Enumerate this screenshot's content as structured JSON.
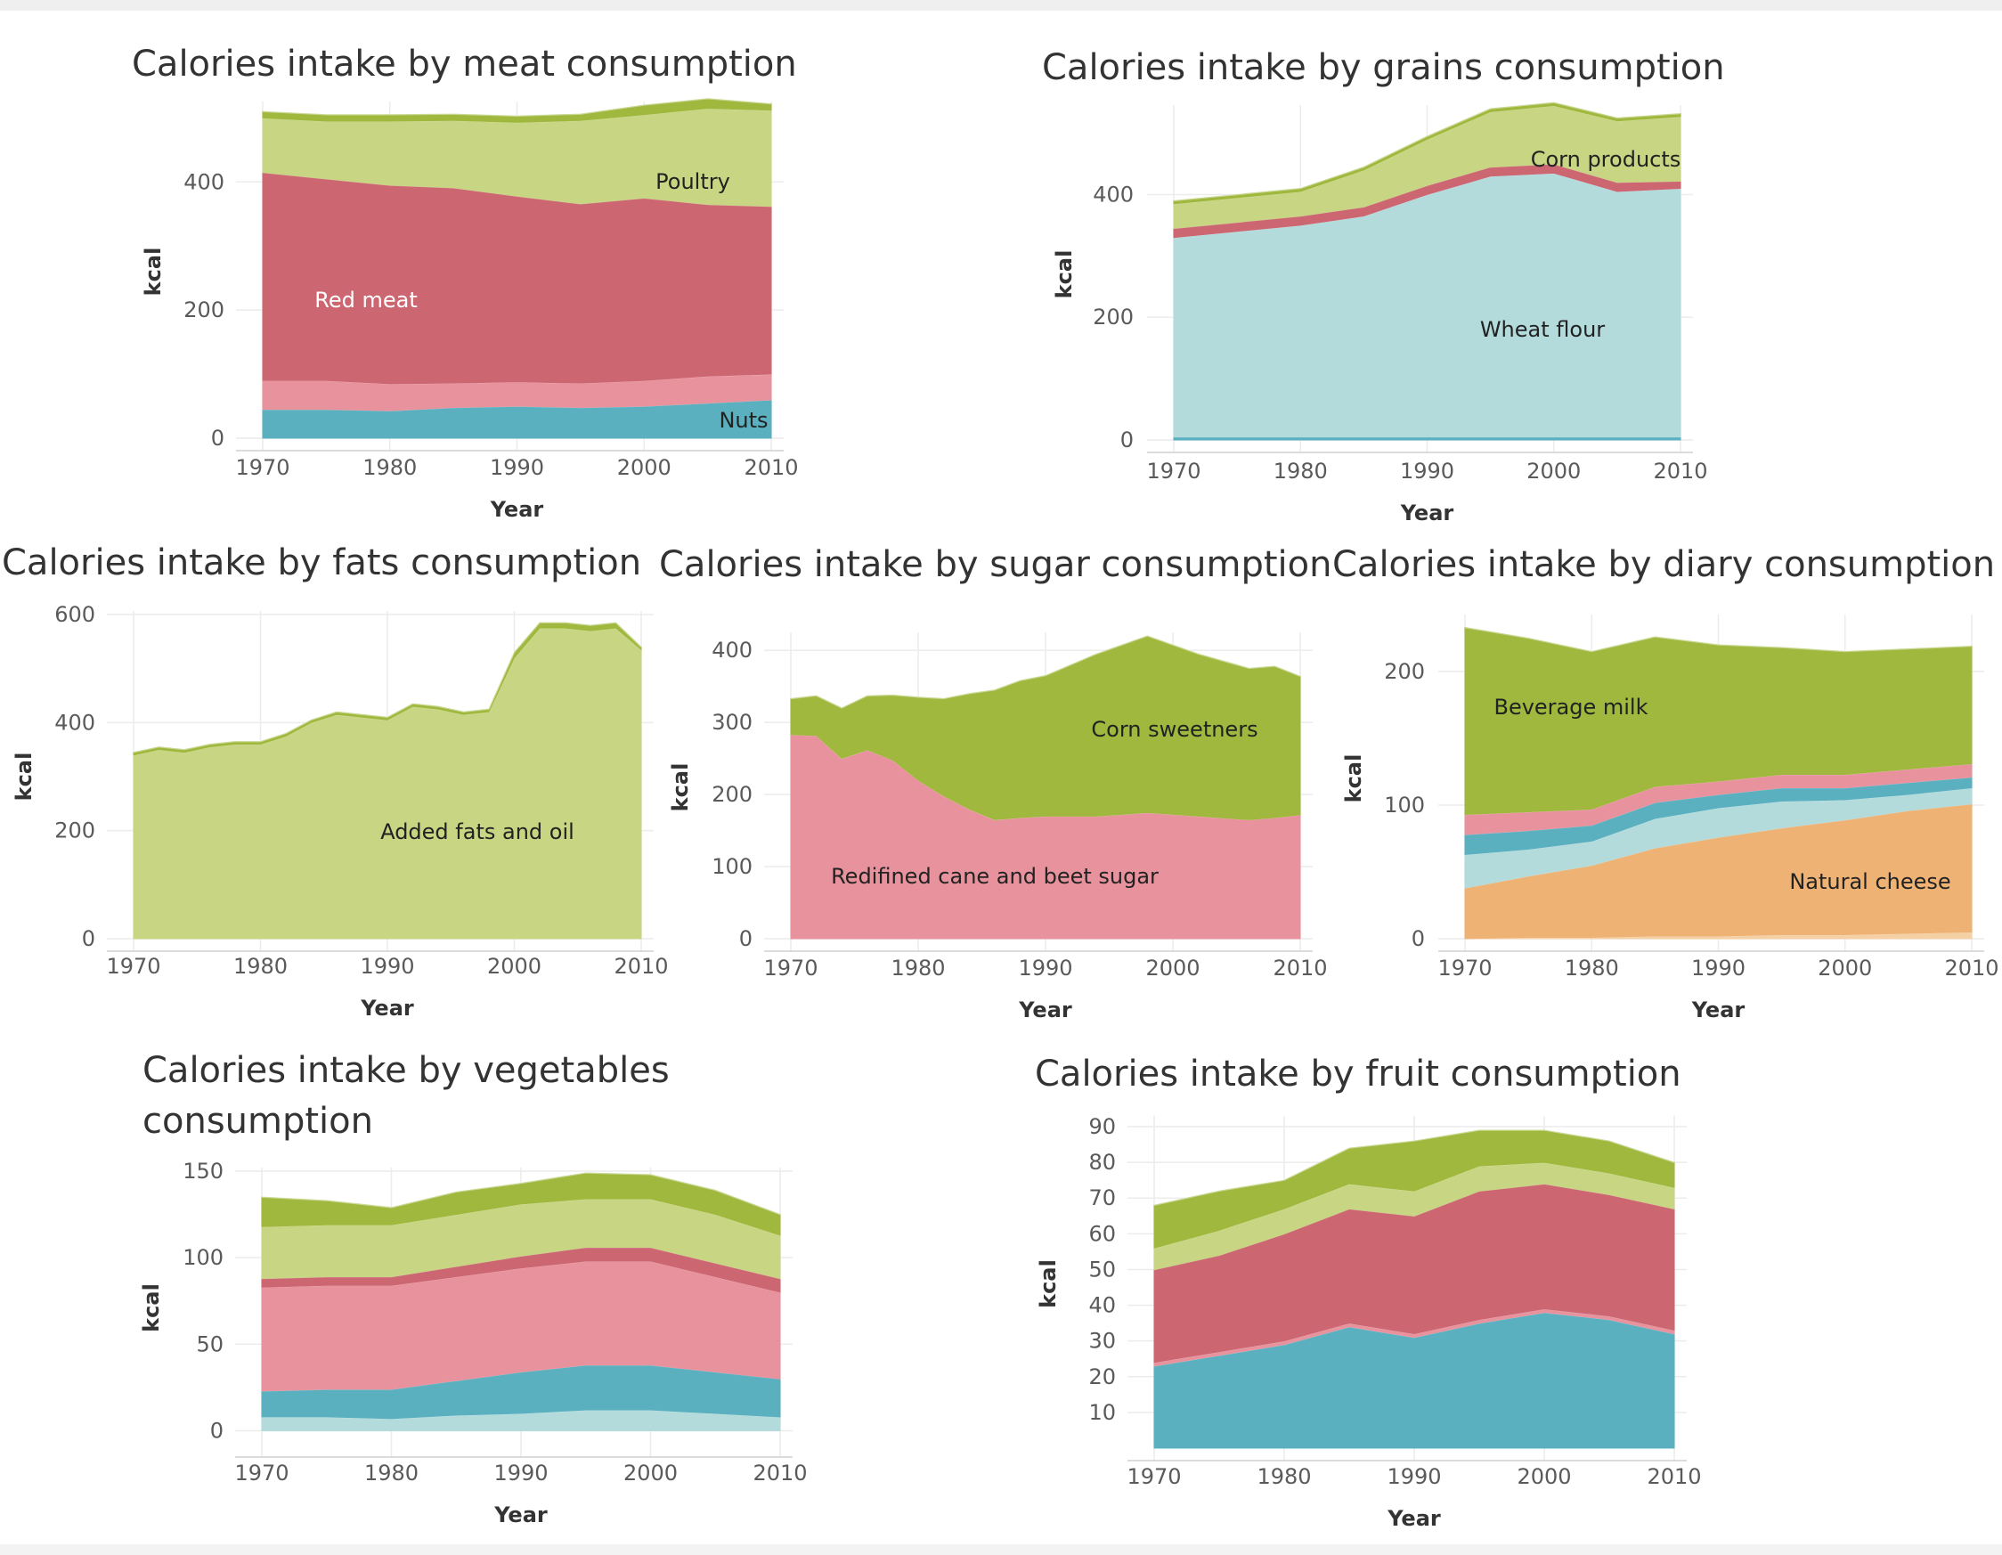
{
  "chart_data": [
    {
      "type": "area",
      "title": "Calories intake by meat consumption",
      "xlabel": "Year",
      "ylabel": "kcal",
      "x_range": [
        1970,
        2010
      ],
      "y_range": [
        0,
        520
      ],
      "x_ticks": [
        "1970",
        "1980",
        "1990",
        "2000",
        "2010"
      ],
      "y_ticks": [
        "0",
        "200",
        "400"
      ],
      "x": [
        1970,
        1975,
        1980,
        1985,
        1990,
        1995,
        2000,
        2005,
        2010
      ],
      "series": [
        {
          "name": "Nuts",
          "color": "#5bb0c0",
          "values": [
            45,
            45,
            43,
            48,
            50,
            48,
            50,
            55,
            60
          ]
        },
        {
          "name": "",
          "color": "#e8929d",
          "values": [
            45,
            45,
            42,
            38,
            38,
            38,
            40,
            42,
            40
          ]
        },
        {
          "name": "Red meat",
          "color": "#cc6772",
          "values": [
            325,
            315,
            310,
            305,
            290,
            280,
            285,
            268,
            262
          ]
        },
        {
          "name": "Poultry",
          "color": "#c8d582",
          "values": [
            85,
            90,
            100,
            105,
            115,
            130,
            130,
            150,
            150
          ]
        },
        {
          "name": "",
          "color": "#9fb83d",
          "values": [
            10,
            10,
            10,
            10,
            10,
            10,
            15,
            15,
            10
          ]
        }
      ]
    },
    {
      "type": "area",
      "title": "Calories intake by grains consumption",
      "xlabel": "Year",
      "ylabel": "kcal",
      "x_range": [
        1970,
        2010
      ],
      "y_range": [
        0,
        540
      ],
      "x_ticks": [
        "1970",
        "1980",
        "1990",
        "2000",
        "2010"
      ],
      "y_ticks": [
        "0",
        "200",
        "400"
      ],
      "x": [
        1970,
        1975,
        1980,
        1985,
        1990,
        1995,
        2000,
        2005,
        2010
      ],
      "series": [
        {
          "name": "",
          "color": "#5bb0c0",
          "values": [
            5,
            5,
            5,
            5,
            5,
            5,
            5,
            5,
            5
          ]
        },
        {
          "name": "Wheat flour",
          "color": "#b3dbdc",
          "values": [
            325,
            335,
            345,
            360,
            395,
            425,
            430,
            400,
            405
          ]
        },
        {
          "name": "",
          "color": "#cc6772",
          "values": [
            15,
            15,
            15,
            15,
            15,
            15,
            15,
            15,
            12
          ]
        },
        {
          "name": "Corn products",
          "color": "#c8d582",
          "values": [
            40,
            40,
            40,
            60,
            75,
            90,
            95,
            100,
            105
          ]
        },
        {
          "name": "",
          "color": "#9fb83d",
          "values": [
            5,
            5,
            5,
            5,
            5,
            5,
            5,
            5,
            5
          ]
        }
      ]
    },
    {
      "type": "area",
      "title": "Calories intake by fats consumption",
      "xlabel": "Year",
      "ylabel": "kcal",
      "x_range": [
        1970,
        2010
      ],
      "y_range": [
        0,
        600
      ],
      "x_ticks": [
        "1970",
        "1980",
        "1990",
        "2000",
        "2010"
      ],
      "y_ticks": [
        "0",
        "200",
        "400",
        "600"
      ],
      "x": [
        1970,
        1972,
        1974,
        1976,
        1978,
        1980,
        1982,
        1984,
        1986,
        1988,
        1990,
        1992,
        1994,
        1996,
        1998,
        2000,
        2002,
        2004,
        2006,
        2008,
        2010
      ],
      "series": [
        {
          "name": "Added fats and oil",
          "color": "#c8d582",
          "values": [
            340,
            350,
            345,
            355,
            360,
            360,
            375,
            400,
            415,
            410,
            405,
            430,
            425,
            415,
            420,
            520,
            575,
            575,
            570,
            575,
            535
          ]
        },
        {
          "name": "",
          "color": "#9fb83d",
          "values": [
            5,
            5,
            5,
            5,
            5,
            5,
            5,
            5,
            5,
            5,
            5,
            5,
            5,
            5,
            5,
            10,
            10,
            10,
            10,
            10,
            5
          ]
        }
      ]
    },
    {
      "type": "area",
      "title": "Calories intake by sugar consumption",
      "xlabel": "Year",
      "ylabel": "kcal",
      "x_range": [
        1970,
        2010
      ],
      "y_range": [
        0,
        420
      ],
      "x_ticks": [
        "1970",
        "1980",
        "1990",
        "2000",
        "2010"
      ],
      "y_ticks": [
        "0",
        "100",
        "200",
        "300",
        "400"
      ],
      "x": [
        1970,
        1972,
        1974,
        1976,
        1978,
        1980,
        1982,
        1984,
        1986,
        1988,
        1990,
        1994,
        1998,
        2002,
        2006,
        2008,
        2010
      ],
      "series": [
        {
          "name": "Redifined cane and beet sugar",
          "color": "#e8929d",
          "values": [
            283,
            282,
            250,
            262,
            248,
            220,
            198,
            180,
            165,
            168,
            170,
            170,
            175,
            170,
            165,
            168,
            172
          ]
        },
        {
          "name": "Corn sweetners",
          "color": "#9fb83d",
          "values": [
            50,
            55,
            70,
            75,
            90,
            115,
            135,
            160,
            180,
            190,
            195,
            225,
            245,
            225,
            210,
            210,
            192
          ]
        }
      ]
    },
    {
      "type": "area",
      "title": "Calories intake by diary consumption",
      "xlabel": "Year",
      "ylabel": "kcal",
      "x_range": [
        1970,
        2010
      ],
      "y_range": [
        0,
        240
      ],
      "x_ticks": [
        "1970",
        "1980",
        "1990",
        "2000",
        "2010"
      ],
      "y_ticks": [
        "0",
        "100",
        "200"
      ],
      "x": [
        1970,
        1975,
        1980,
        1985,
        1990,
        1995,
        2000,
        2005,
        2010
      ],
      "series": [
        {
          "name": "",
          "color": "#f4d0a4",
          "values": [
            0,
            1,
            1,
            2,
            2,
            3,
            3,
            4,
            5
          ]
        },
        {
          "name": "Natural cheese",
          "color": "#eeb275",
          "values": [
            38,
            46,
            54,
            66,
            74,
            80,
            86,
            92,
            96
          ]
        },
        {
          "name": "",
          "color": "#b3dbdc",
          "values": [
            25,
            20,
            18,
            22,
            22,
            20,
            15,
            12,
            12
          ]
        },
        {
          "name": "",
          "color": "#5bb0c0",
          "values": [
            15,
            14,
            12,
            12,
            10,
            10,
            9,
            9,
            8
          ]
        },
        {
          "name": "",
          "color": "#e8929d",
          "values": [
            15,
            14,
            12,
            12,
            10,
            10,
            10,
            10,
            10
          ]
        },
        {
          "name": "Beverage milk",
          "color": "#9fb83d",
          "values": [
            140,
            130,
            118,
            112,
            102,
            95,
            92,
            90,
            88
          ]
        }
      ]
    },
    {
      "type": "area",
      "title": "Calories intake by vegetables consumption",
      "xlabel": "Year",
      "ylabel": "kcal",
      "x_range": [
        1970,
        2010
      ],
      "y_range": [
        -8,
        150
      ],
      "x_ticks": [
        "1970",
        "1980",
        "1990",
        "2000",
        "2010"
      ],
      "y_ticks": [
        "0",
        "50",
        "100",
        "150"
      ],
      "x": [
        1970,
        1975,
        1980,
        1985,
        1990,
        1995,
        2000,
        2005,
        2010
      ],
      "series": [
        {
          "name": "",
          "color": "#b3dbdc",
          "values": [
            8,
            8,
            7,
            9,
            10,
            12,
            12,
            10,
            8
          ]
        },
        {
          "name": "",
          "color": "#5bb0c0",
          "values": [
            15,
            16,
            17,
            20,
            24,
            26,
            26,
            24,
            22
          ]
        },
        {
          "name": "",
          "color": "#e8929d",
          "values": [
            60,
            60,
            60,
            60,
            60,
            60,
            60,
            55,
            50
          ]
        },
        {
          "name": "",
          "color": "#cc6772",
          "values": [
            5,
            5,
            5,
            6,
            7,
            8,
            8,
            8,
            8
          ]
        },
        {
          "name": "",
          "color": "#c8d582",
          "values": [
            30,
            30,
            30,
            30,
            30,
            28,
            28,
            28,
            25
          ]
        },
        {
          "name": "",
          "color": "#9fb83d",
          "values": [
            17,
            14,
            10,
            13,
            12,
            15,
            14,
            14,
            12
          ]
        }
      ]
    },
    {
      "type": "area",
      "title": "Calories intake by fruit consumption",
      "xlabel": "Year",
      "ylabel": "kcal",
      "x_range": [
        1970,
        2010
      ],
      "y_range": [
        0,
        92
      ],
      "x_ticks": [
        "1970",
        "1980",
        "1990",
        "2000",
        "2010"
      ],
      "y_ticks": [
        "10",
        "20",
        "30",
        "40",
        "50",
        "60",
        "70",
        "80",
        "90"
      ],
      "x": [
        1970,
        1975,
        1980,
        1985,
        1990,
        1995,
        2000,
        2005,
        2010
      ],
      "series": [
        {
          "name": "",
          "color": "#5bb0c0",
          "values": [
            23,
            26,
            29,
            34,
            31,
            35,
            38,
            36,
            32
          ]
        },
        {
          "name": "",
          "color": "#e8929d",
          "values": [
            1,
            1,
            1,
            1,
            1,
            1,
            1,
            1,
            1
          ]
        },
        {
          "name": "",
          "color": "#cc6772",
          "values": [
            26,
            27,
            30,
            32,
            33,
            36,
            35,
            34,
            34
          ]
        },
        {
          "name": "",
          "color": "#c8d582",
          "values": [
            6,
            7,
            7,
            7,
            7,
            7,
            6,
            6,
            6
          ]
        },
        {
          "name": "",
          "color": "#9fb83d",
          "values": [
            12,
            11,
            8,
            10,
            14,
            10,
            9,
            9,
            7
          ]
        }
      ]
    }
  ]
}
